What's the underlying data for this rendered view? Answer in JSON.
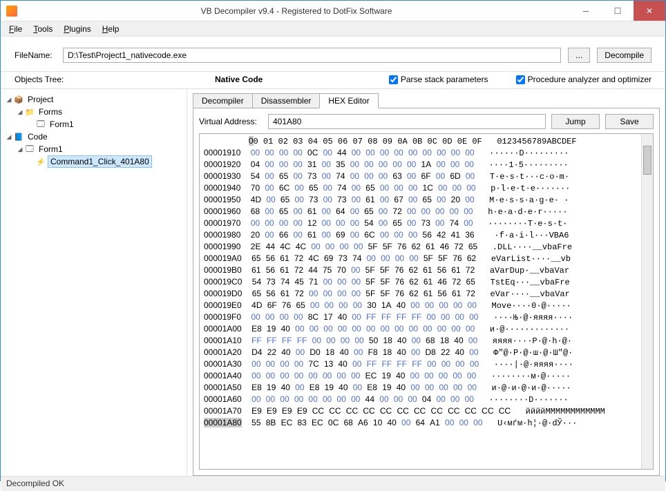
{
  "title": "VB Decompiler v9.4 - Registered to DotFix Software",
  "menu": {
    "file": "File",
    "tools": "Tools",
    "plugins": "Plugins",
    "help": "Help"
  },
  "fileRow": {
    "label": "FileName:",
    "value": "D:\\Test\\Project1_nativecode.exe",
    "browse": "...",
    "decompile": "Decompile"
  },
  "sectionRow": {
    "objectsTree": "Objects Tree:",
    "nativeCode": "Native Code",
    "parseStack": "Parse stack parameters",
    "procAnalyzer": "Procedure analyzer and optimizer"
  },
  "tree": {
    "project": "Project",
    "forms": "Forms",
    "form1": "Form1",
    "code": "Code",
    "codeForm1": "Form1",
    "command": "Command1_Click_401A80"
  },
  "tabs": {
    "decompiler": "Decompiler",
    "disassembler": "Disassembler",
    "hexEditor": "HEX Editor"
  },
  "hexEditor": {
    "vaLabel": "Virtual Address:",
    "vaValue": "401A80",
    "jump": "Jump",
    "save": "Save"
  },
  "status": "Decompiled OK",
  "colors": {
    "byteZero": "#5070d0",
    "byteNonZero": "#000000",
    "hlBg": "#cccccc"
  },
  "hex": {
    "header": "       00 01 02 03 04 05 06 07 08 09 0A 0B 0C 0D 0E 0F   0123456789ABCDEF",
    "rows": [
      {
        "addr": "00001910",
        "bytes": [
          "00",
          "00",
          "00",
          "00",
          "0C",
          "00",
          "44",
          "00",
          "00",
          "00",
          "00",
          "00",
          "00",
          "00",
          "00",
          "00"
        ],
        "ascii": "······D·········"
      },
      {
        "addr": "00001920",
        "bytes": [
          "04",
          "00",
          "00",
          "00",
          "31",
          "00",
          "35",
          "00",
          "00",
          "00",
          "00",
          "00",
          "1A",
          "00",
          "00",
          "00"
        ],
        "ascii": "····1·5·········"
      },
      {
        "addr": "00001930",
        "bytes": [
          "54",
          "00",
          "65",
          "00",
          "73",
          "00",
          "74",
          "00",
          "00",
          "00",
          "63",
          "00",
          "6F",
          "00",
          "6D",
          "00"
        ],
        "ascii": "T·e·s·t···c·o·m·"
      },
      {
        "addr": "00001940",
        "bytes": [
          "70",
          "00",
          "6C",
          "00",
          "65",
          "00",
          "74",
          "00",
          "65",
          "00",
          "00",
          "00",
          "1C",
          "00",
          "00",
          "00"
        ],
        "ascii": "p·l·e·t·e·······"
      },
      {
        "addr": "00001950",
        "bytes": [
          "4D",
          "00",
          "65",
          "00",
          "73",
          "00",
          "73",
          "00",
          "61",
          "00",
          "67",
          "00",
          "65",
          "00",
          "20",
          "00"
        ],
        "ascii": "M·e·s·s·a·g·e· ·"
      },
      {
        "addr": "00001960",
        "bytes": [
          "68",
          "00",
          "65",
          "00",
          "61",
          "00",
          "64",
          "00",
          "65",
          "00",
          "72",
          "00",
          "00",
          "00",
          "00",
          "00"
        ],
        "ascii": "h·e·a·d·e·r·····"
      },
      {
        "addr": "00001970",
        "bytes": [
          "00",
          "00",
          "00",
          "00",
          "12",
          "00",
          "00",
          "00",
          "54",
          "00",
          "65",
          "00",
          "73",
          "00",
          "74",
          "00"
        ],
        "ascii": "········T·e·s·t·"
      },
      {
        "addr": "00001980",
        "bytes": [
          "20",
          "00",
          "66",
          "00",
          "61",
          "00",
          "69",
          "00",
          "6C",
          "00",
          "00",
          "00",
          "56",
          "42",
          "41",
          "36"
        ],
        "ascii": " ·f·a·i·l···VBA6"
      },
      {
        "addr": "00001990",
        "bytes": [
          "2E",
          "44",
          "4C",
          "4C",
          "00",
          "00",
          "00",
          "00",
          "5F",
          "5F",
          "76",
          "62",
          "61",
          "46",
          "72",
          "65"
        ],
        "ascii": ".DLL····__vbaFre"
      },
      {
        "addr": "000019A0",
        "bytes": [
          "65",
          "56",
          "61",
          "72",
          "4C",
          "69",
          "73",
          "74",
          "00",
          "00",
          "00",
          "00",
          "5F",
          "5F",
          "76",
          "62"
        ],
        "ascii": "eVarList····__vb"
      },
      {
        "addr": "000019B0",
        "bytes": [
          "61",
          "56",
          "61",
          "72",
          "44",
          "75",
          "70",
          "00",
          "5F",
          "5F",
          "76",
          "62",
          "61",
          "56",
          "61",
          "72"
        ],
        "ascii": "aVarDup·__vbaVar"
      },
      {
        "addr": "000019C0",
        "bytes": [
          "54",
          "73",
          "74",
          "45",
          "71",
          "00",
          "00",
          "00",
          "5F",
          "5F",
          "76",
          "62",
          "61",
          "46",
          "72",
          "65"
        ],
        "ascii": "TstEq···__vbaFre"
      },
      {
        "addr": "000019D0",
        "bytes": [
          "65",
          "56",
          "61",
          "72",
          "00",
          "00",
          "00",
          "00",
          "5F",
          "5F",
          "76",
          "62",
          "61",
          "56",
          "61",
          "72"
        ],
        "ascii": "eVar····__vbaVar"
      },
      {
        "addr": "000019E0",
        "bytes": [
          "4D",
          "6F",
          "76",
          "65",
          "00",
          "00",
          "00",
          "00",
          "30",
          "1A",
          "40",
          "00",
          "00",
          "00",
          "00",
          "00"
        ],
        "ascii": "Move····0·@·····"
      },
      {
        "addr": "000019F0",
        "bytes": [
          "00",
          "00",
          "00",
          "00",
          "8C",
          "17",
          "40",
          "00",
          "FF",
          "FF",
          "FF",
          "FF",
          "00",
          "00",
          "00",
          "00"
        ],
        "ascii": "····Њ·@·яяяя····"
      },
      {
        "addr": "00001A00",
        "bytes": [
          "E8",
          "19",
          "40",
          "00",
          "00",
          "00",
          "00",
          "00",
          "00",
          "00",
          "00",
          "00",
          "00",
          "00",
          "00",
          "00"
        ],
        "ascii": "и·@·············"
      },
      {
        "addr": "00001A10",
        "bytes": [
          "FF",
          "FF",
          "FF",
          "FF",
          "00",
          "00",
          "00",
          "00",
          "50",
          "18",
          "40",
          "00",
          "68",
          "18",
          "40",
          "00"
        ],
        "ascii": "яяяя····P·@·h·@·"
      },
      {
        "addr": "00001A20",
        "bytes": [
          "D4",
          "22",
          "40",
          "00",
          "D0",
          "18",
          "40",
          "00",
          "F8",
          "18",
          "40",
          "00",
          "D8",
          "22",
          "40",
          "00"
        ],
        "ascii": "Ф\"@·Р·@·ш·@·Ш\"@·"
      },
      {
        "addr": "00001A30",
        "bytes": [
          "00",
          "00",
          "00",
          "00",
          "7C",
          "13",
          "40",
          "00",
          "FF",
          "FF",
          "FF",
          "FF",
          "00",
          "00",
          "00",
          "00"
        ],
        "ascii": "····|·@·яяяя····"
      },
      {
        "addr": "00001A40",
        "bytes": [
          "00",
          "00",
          "00",
          "00",
          "00",
          "00",
          "00",
          "00",
          "EC",
          "19",
          "40",
          "00",
          "00",
          "00",
          "00",
          "00"
        ],
        "ascii": "········м·@·····"
      },
      {
        "addr": "00001A50",
        "bytes": [
          "E8",
          "19",
          "40",
          "00",
          "E8",
          "19",
          "40",
          "00",
          "E8",
          "19",
          "40",
          "00",
          "00",
          "00",
          "00",
          "00"
        ],
        "ascii": "и·@·и·@·и·@·····"
      },
      {
        "addr": "00001A60",
        "bytes": [
          "00",
          "00",
          "00",
          "00",
          "00",
          "00",
          "00",
          "00",
          "44",
          "00",
          "00",
          "00",
          "04",
          "00",
          "00",
          "00"
        ],
        "ascii": "········D·······"
      },
      {
        "addr": "00001A70",
        "bytes": [
          "E9",
          "E9",
          "E9",
          "E9",
          "CC",
          "CC",
          "CC",
          "CC",
          "CC",
          "CC",
          "CC",
          "CC",
          "CC",
          "CC",
          "CC",
          "CC"
        ],
        "ascii": "ййййММММММММММММ"
      },
      {
        "addr": "00001A80",
        "hl": true,
        "bytes": [
          "55",
          "8B",
          "EC",
          "83",
          "EC",
          "0C",
          "68",
          "A6",
          "10",
          "40",
          "00",
          "64",
          "A1",
          "00",
          "00",
          "00"
        ],
        "ascii": "U‹мѓм·h¦·@·dЎ···"
      }
    ]
  }
}
